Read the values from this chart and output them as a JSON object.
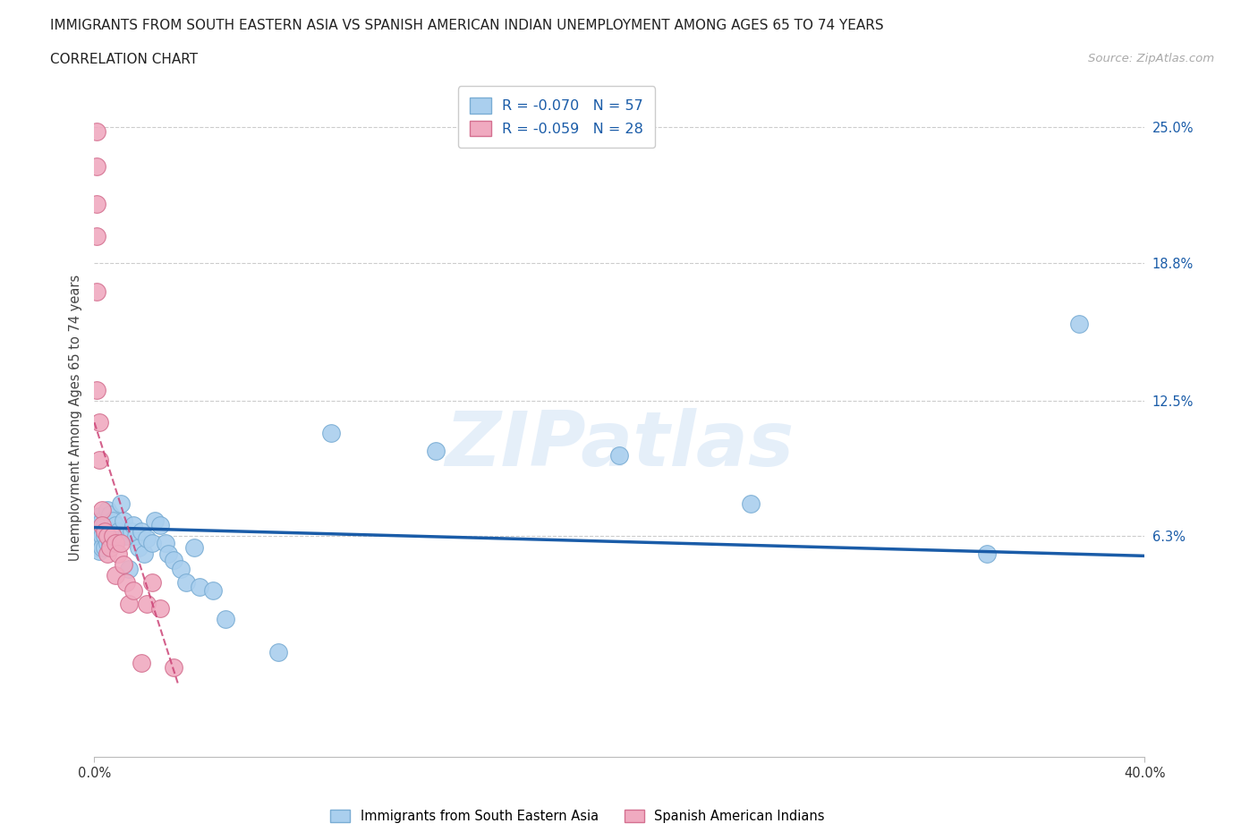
{
  "title_line1": "IMMIGRANTS FROM SOUTH EASTERN ASIA VS SPANISH AMERICAN INDIAN UNEMPLOYMENT AMONG AGES 65 TO 74 YEARS",
  "title_line2": "CORRELATION CHART",
  "source": "Source: ZipAtlas.com",
  "ylabel": "Unemployment Among Ages 65 to 74 years",
  "ytick_labels": [
    "25.0%",
    "18.8%",
    "12.5%",
    "6.3%"
  ],
  "ytick_vals": [
    0.25,
    0.188,
    0.125,
    0.063
  ],
  "xmin": 0.0,
  "xmax": 0.4,
  "ymin": -0.038,
  "ymax": 0.272,
  "watermark": "ZIPatlas",
  "legend_blue_label": "R = -0.070   N = 57",
  "legend_pink_label": "R = -0.059   N = 28",
  "legend_text_color": "#1a5ca8",
  "blue_color": "#aacfee",
  "blue_edge": "#7aadd4",
  "blue_line_color": "#1a5ca8",
  "pink_color": "#f0aac0",
  "pink_edge": "#d47090",
  "pink_line_color": "#cc4477",
  "blue_label": "Immigrants from South Eastern Asia",
  "pink_label": "Spanish American Indians",
  "blue_x": [
    0.001,
    0.001,
    0.001,
    0.002,
    0.002,
    0.002,
    0.002,
    0.003,
    0.003,
    0.003,
    0.003,
    0.004,
    0.004,
    0.004,
    0.005,
    0.005,
    0.005,
    0.006,
    0.006,
    0.006,
    0.007,
    0.007,
    0.007,
    0.008,
    0.008,
    0.009,
    0.01,
    0.01,
    0.011,
    0.012,
    0.013,
    0.014,
    0.015,
    0.016,
    0.017,
    0.018,
    0.019,
    0.02,
    0.022,
    0.023,
    0.025,
    0.027,
    0.028,
    0.03,
    0.033,
    0.035,
    0.038,
    0.04,
    0.045,
    0.05,
    0.07,
    0.09,
    0.13,
    0.2,
    0.25,
    0.34,
    0.375
  ],
  "blue_y": [
    0.068,
    0.063,
    0.058,
    0.072,
    0.063,
    0.06,
    0.056,
    0.07,
    0.065,
    0.063,
    0.058,
    0.068,
    0.063,
    0.058,
    0.075,
    0.065,
    0.06,
    0.073,
    0.065,
    0.06,
    0.07,
    0.065,
    0.06,
    0.068,
    0.06,
    0.065,
    0.078,
    0.063,
    0.07,
    0.063,
    0.048,
    0.065,
    0.068,
    0.063,
    0.058,
    0.065,
    0.055,
    0.062,
    0.06,
    0.07,
    0.068,
    0.06,
    0.055,
    0.052,
    0.048,
    0.042,
    0.058,
    0.04,
    0.038,
    0.025,
    0.01,
    0.11,
    0.102,
    0.1,
    0.078,
    0.055,
    0.16
  ],
  "pink_x": [
    0.001,
    0.001,
    0.001,
    0.001,
    0.001,
    0.001,
    0.002,
    0.002,
    0.003,
    0.003,
    0.004,
    0.005,
    0.005,
    0.006,
    0.007,
    0.008,
    0.008,
    0.009,
    0.01,
    0.011,
    0.012,
    0.013,
    0.015,
    0.018,
    0.02,
    0.022,
    0.025,
    0.03
  ],
  "pink_y": [
    0.248,
    0.232,
    0.215,
    0.2,
    0.175,
    0.13,
    0.115,
    0.098,
    0.075,
    0.068,
    0.065,
    0.063,
    0.055,
    0.058,
    0.063,
    0.06,
    0.045,
    0.055,
    0.06,
    0.05,
    0.042,
    0.032,
    0.038,
    0.005,
    0.032,
    0.042,
    0.03,
    0.003
  ],
  "blue_trend_x0": 0.0,
  "blue_trend_x1": 0.4,
  "blue_trend_y0": 0.067,
  "blue_trend_y1": 0.054,
  "pink_trend_x0": 0.0,
  "pink_trend_x1": 0.032,
  "pink_trend_y0": 0.115,
  "pink_trend_y1": -0.005
}
